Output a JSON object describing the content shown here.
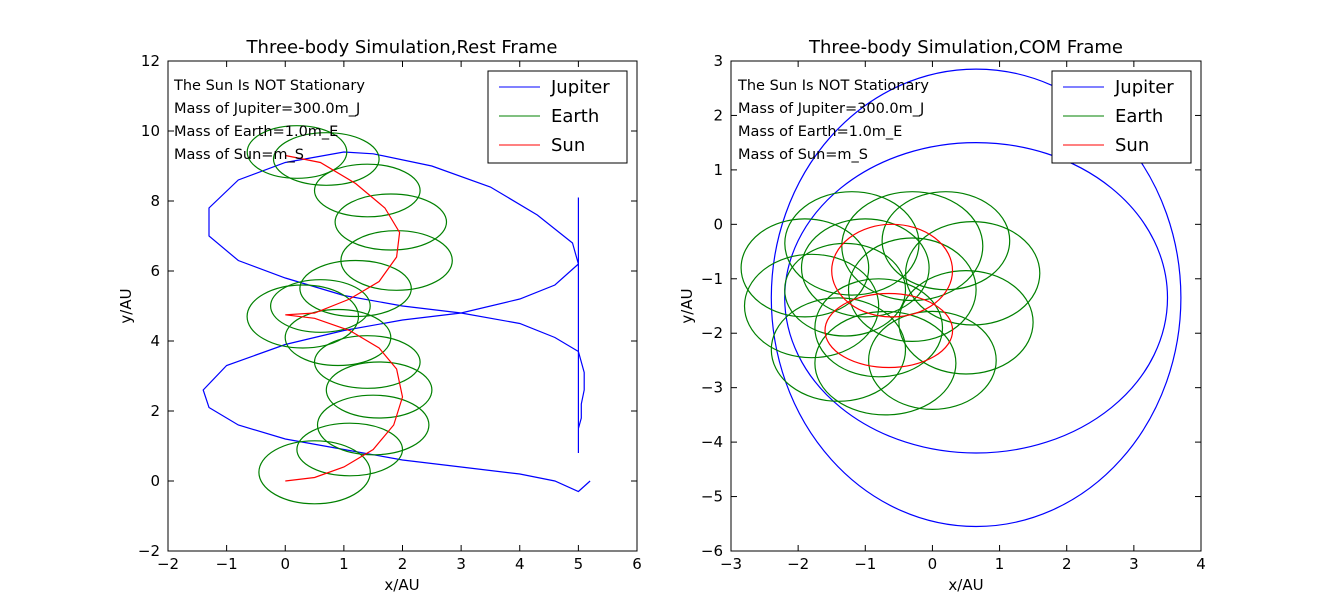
{
  "chart_data": [
    {
      "type": "line",
      "title": "Three-body Simulation,Rest Frame",
      "xlabel": "x/AU",
      "ylabel": "y/AU",
      "xlim": [
        -2,
        6
      ],
      "ylim": [
        -2,
        12
      ],
      "xticks": [
        "−2",
        "−1",
        "0",
        "1",
        "2",
        "3",
        "4",
        "5",
        "6"
      ],
      "yticks": [
        "−2",
        "0",
        "2",
        "4",
        "6",
        "8",
        "10",
        "12"
      ],
      "legend": {
        "position": "top-right",
        "entries": [
          "Jupiter",
          "Earth",
          "Sun"
        ]
      },
      "annotations": [
        "The Sun Is NOT Stationary",
        "Mass of Jupiter=300.0m_J",
        "Mass of Earth=1.0m_E",
        "Mass of Sun=m_S"
      ],
      "series": [
        {
          "name": "Jupiter",
          "color": "#0000ff",
          "points": [
            [
              5.2,
              0.0
            ],
            [
              5.0,
              -0.3
            ],
            [
              4.6,
              0.0
            ],
            [
              4.0,
              0.2
            ],
            [
              3.0,
              0.4
            ],
            [
              2.0,
              0.6
            ],
            [
              1.0,
              0.9
            ],
            [
              0.0,
              1.2
            ],
            [
              -0.8,
              1.6
            ],
            [
              -1.3,
              2.1
            ],
            [
              -1.4,
              2.6
            ],
            [
              -1.0,
              3.3
            ],
            [
              0.0,
              3.9
            ],
            [
              1.0,
              4.3
            ],
            [
              2.0,
              4.6
            ],
            [
              3.0,
              4.8
            ],
            [
              4.0,
              5.2
            ],
            [
              4.6,
              5.6
            ],
            [
              5.0,
              6.2
            ],
            [
              4.9,
              6.8
            ],
            [
              4.3,
              7.6
            ],
            [
              3.5,
              8.4
            ],
            [
              2.5,
              9.0
            ],
            [
              1.5,
              9.35
            ],
            [
              1.0,
              9.4
            ],
            [
              0.0,
              9.1
            ],
            [
              -0.8,
              8.6
            ],
            [
              -1.3,
              7.8
            ],
            [
              -1.3,
              7.0
            ],
            [
              -0.8,
              6.3
            ],
            [
              0.0,
              5.8
            ],
            [
              1.0,
              5.3
            ],
            [
              2.0,
              5.0
            ],
            [
              3.0,
              4.8
            ],
            [
              4.0,
              4.5
            ],
            [
              4.6,
              4.1
            ],
            [
              5.0,
              3.7
            ],
            [
              5.1,
              3.1
            ],
            [
              5.1,
              2.6
            ],
            [
              5.05,
              2.2
            ],
            [
              5.05,
              1.8
            ],
            [
              5.0,
              1.5
            ],
            [
              5.0,
              1.2
            ],
            [
              5.0,
              0.9
            ],
            [
              5.0,
              0.8
            ],
            [
              5.0,
              8.1
            ]
          ]
        },
        {
          "name": "Earth",
          "color": "#008000",
          "loops": [
            {
              "cx": 0.5,
              "cy": 0.25,
              "rx": 0.95,
              "ry": 0.9
            },
            {
              "cx": 1.1,
              "cy": 0.9,
              "rx": 0.9,
              "ry": 0.75
            },
            {
              "cx": 1.5,
              "cy": 1.6,
              "rx": 0.95,
              "ry": 0.85
            },
            {
              "cx": 1.6,
              "cy": 2.6,
              "rx": 0.9,
              "ry": 0.8
            },
            {
              "cx": 1.4,
              "cy": 3.4,
              "rx": 0.9,
              "ry": 0.75
            },
            {
              "cx": 0.9,
              "cy": 4.1,
              "rx": 0.9,
              "ry": 0.8
            },
            {
              "cx": 0.3,
              "cy": 4.7,
              "rx": 0.95,
              "ry": 0.9
            },
            {
              "cx": 0.6,
              "cy": 5.0,
              "rx": 0.85,
              "ry": 0.75
            },
            {
              "cx": 1.2,
              "cy": 5.5,
              "rx": 0.95,
              "ry": 0.8
            },
            {
              "cx": 1.9,
              "cy": 6.3,
              "rx": 0.95,
              "ry": 0.85
            },
            {
              "cx": 1.8,
              "cy": 7.4,
              "rx": 0.95,
              "ry": 0.8
            },
            {
              "cx": 1.4,
              "cy": 8.3,
              "rx": 0.9,
              "ry": 0.75
            },
            {
              "cx": 0.7,
              "cy": 9.2,
              "rx": 0.9,
              "ry": 0.75
            },
            {
              "cx": 0.2,
              "cy": 9.4,
              "rx": 0.85,
              "ry": 0.75
            }
          ]
        },
        {
          "name": "Sun",
          "color": "#ff0000",
          "points": [
            [
              0.0,
              0.0
            ],
            [
              0.5,
              0.1
            ],
            [
              1.0,
              0.4
            ],
            [
              1.5,
              0.9
            ],
            [
              1.85,
              1.6
            ],
            [
              2.0,
              2.4
            ],
            [
              1.9,
              3.2
            ],
            [
              1.6,
              3.8
            ],
            [
              1.1,
              4.3
            ],
            [
              0.5,
              4.65
            ],
            [
              0.0,
              4.75
            ],
            [
              0.5,
              4.8
            ],
            [
              1.1,
              5.2
            ],
            [
              1.6,
              5.7
            ],
            [
              1.9,
              6.4
            ],
            [
              1.95,
              7.1
            ],
            [
              1.7,
              7.8
            ],
            [
              1.2,
              8.5
            ],
            [
              0.6,
              9.1
            ],
            [
              0.0,
              9.3
            ]
          ]
        }
      ]
    },
    {
      "type": "line",
      "title": "Three-body Simulation,COM Frame",
      "xlabel": "x/AU",
      "ylabel": "y/AU",
      "xlim": [
        -3,
        4
      ],
      "ylim": [
        -6,
        3
      ],
      "xticks": [
        "−3",
        "−2",
        "−1",
        "0",
        "1",
        "2",
        "3",
        "4"
      ],
      "yticks": [
        "−6",
        "−5",
        "−4",
        "−3",
        "−2",
        "−1",
        "0",
        "1",
        "2",
        "3"
      ],
      "legend": {
        "position": "top-right",
        "entries": [
          "Jupiter",
          "Earth",
          "Sun"
        ]
      },
      "annotations": [
        "The Sun Is NOT Stationary",
        "Mass of Jupiter=300.0m_J",
        "Mass of Earth=1.0m_E",
        "Mass of Sun=m_S"
      ],
      "series": [
        {
          "name": "Jupiter",
          "color": "#0000ff",
          "ellipses": [
            {
              "cx": 0.65,
              "cy": -1.35,
              "rx": 3.05,
              "ry": 4.2
            },
            {
              "cx": 0.65,
              "cy": -1.35,
              "rx": 2.85,
              "ry": 2.85
            }
          ],
          "end_points": [
            [
              3.7,
              0.0
            ],
            [
              3.55,
              -3.65
            ]
          ]
        },
        {
          "name": "Earth",
          "color": "#008000",
          "loops": [
            {
              "cx": -1.2,
              "cy": -0.35,
              "rx": 1.0,
              "ry": 0.95
            },
            {
              "cx": -0.3,
              "cy": -0.4,
              "rx": 1.05,
              "ry": 1.0
            },
            {
              "cx": 0.2,
              "cy": -0.3,
              "rx": 0.95,
              "ry": 0.9
            },
            {
              "cx": 0.6,
              "cy": -0.9,
              "rx": 1.0,
              "ry": 0.95
            },
            {
              "cx": 0.5,
              "cy": -1.8,
              "rx": 1.0,
              "ry": 0.95
            },
            {
              "cx": 0.0,
              "cy": -2.5,
              "rx": 0.95,
              "ry": 0.9
            },
            {
              "cx": -0.7,
              "cy": -2.55,
              "rx": 1.05,
              "ry": 0.95
            },
            {
              "cx": -1.4,
              "cy": -2.3,
              "rx": 1.0,
              "ry": 0.95
            },
            {
              "cx": -1.8,
              "cy": -1.5,
              "rx": 1.0,
              "ry": 0.95
            },
            {
              "cx": -1.9,
              "cy": -0.8,
              "rx": 0.95,
              "ry": 0.9
            },
            {
              "cx": -1.0,
              "cy": -0.8,
              "rx": 0.95,
              "ry": 0.9
            },
            {
              "cx": -0.3,
              "cy": -1.2,
              "rx": 0.95,
              "ry": 0.95
            },
            {
              "cx": -0.8,
              "cy": -1.9,
              "rx": 0.95,
              "ry": 0.9
            },
            {
              "cx": -1.3,
              "cy": -1.2,
              "rx": 0.9,
              "ry": 0.85
            }
          ]
        },
        {
          "name": "Sun",
          "color": "#ff0000",
          "loops": [
            {
              "cx": -0.6,
              "cy": -0.85,
              "rx": 0.9,
              "ry": 0.85
            },
            {
              "cx": -0.65,
              "cy": -1.95,
              "rx": 0.95,
              "ry": 0.68
            }
          ]
        }
      ]
    }
  ]
}
